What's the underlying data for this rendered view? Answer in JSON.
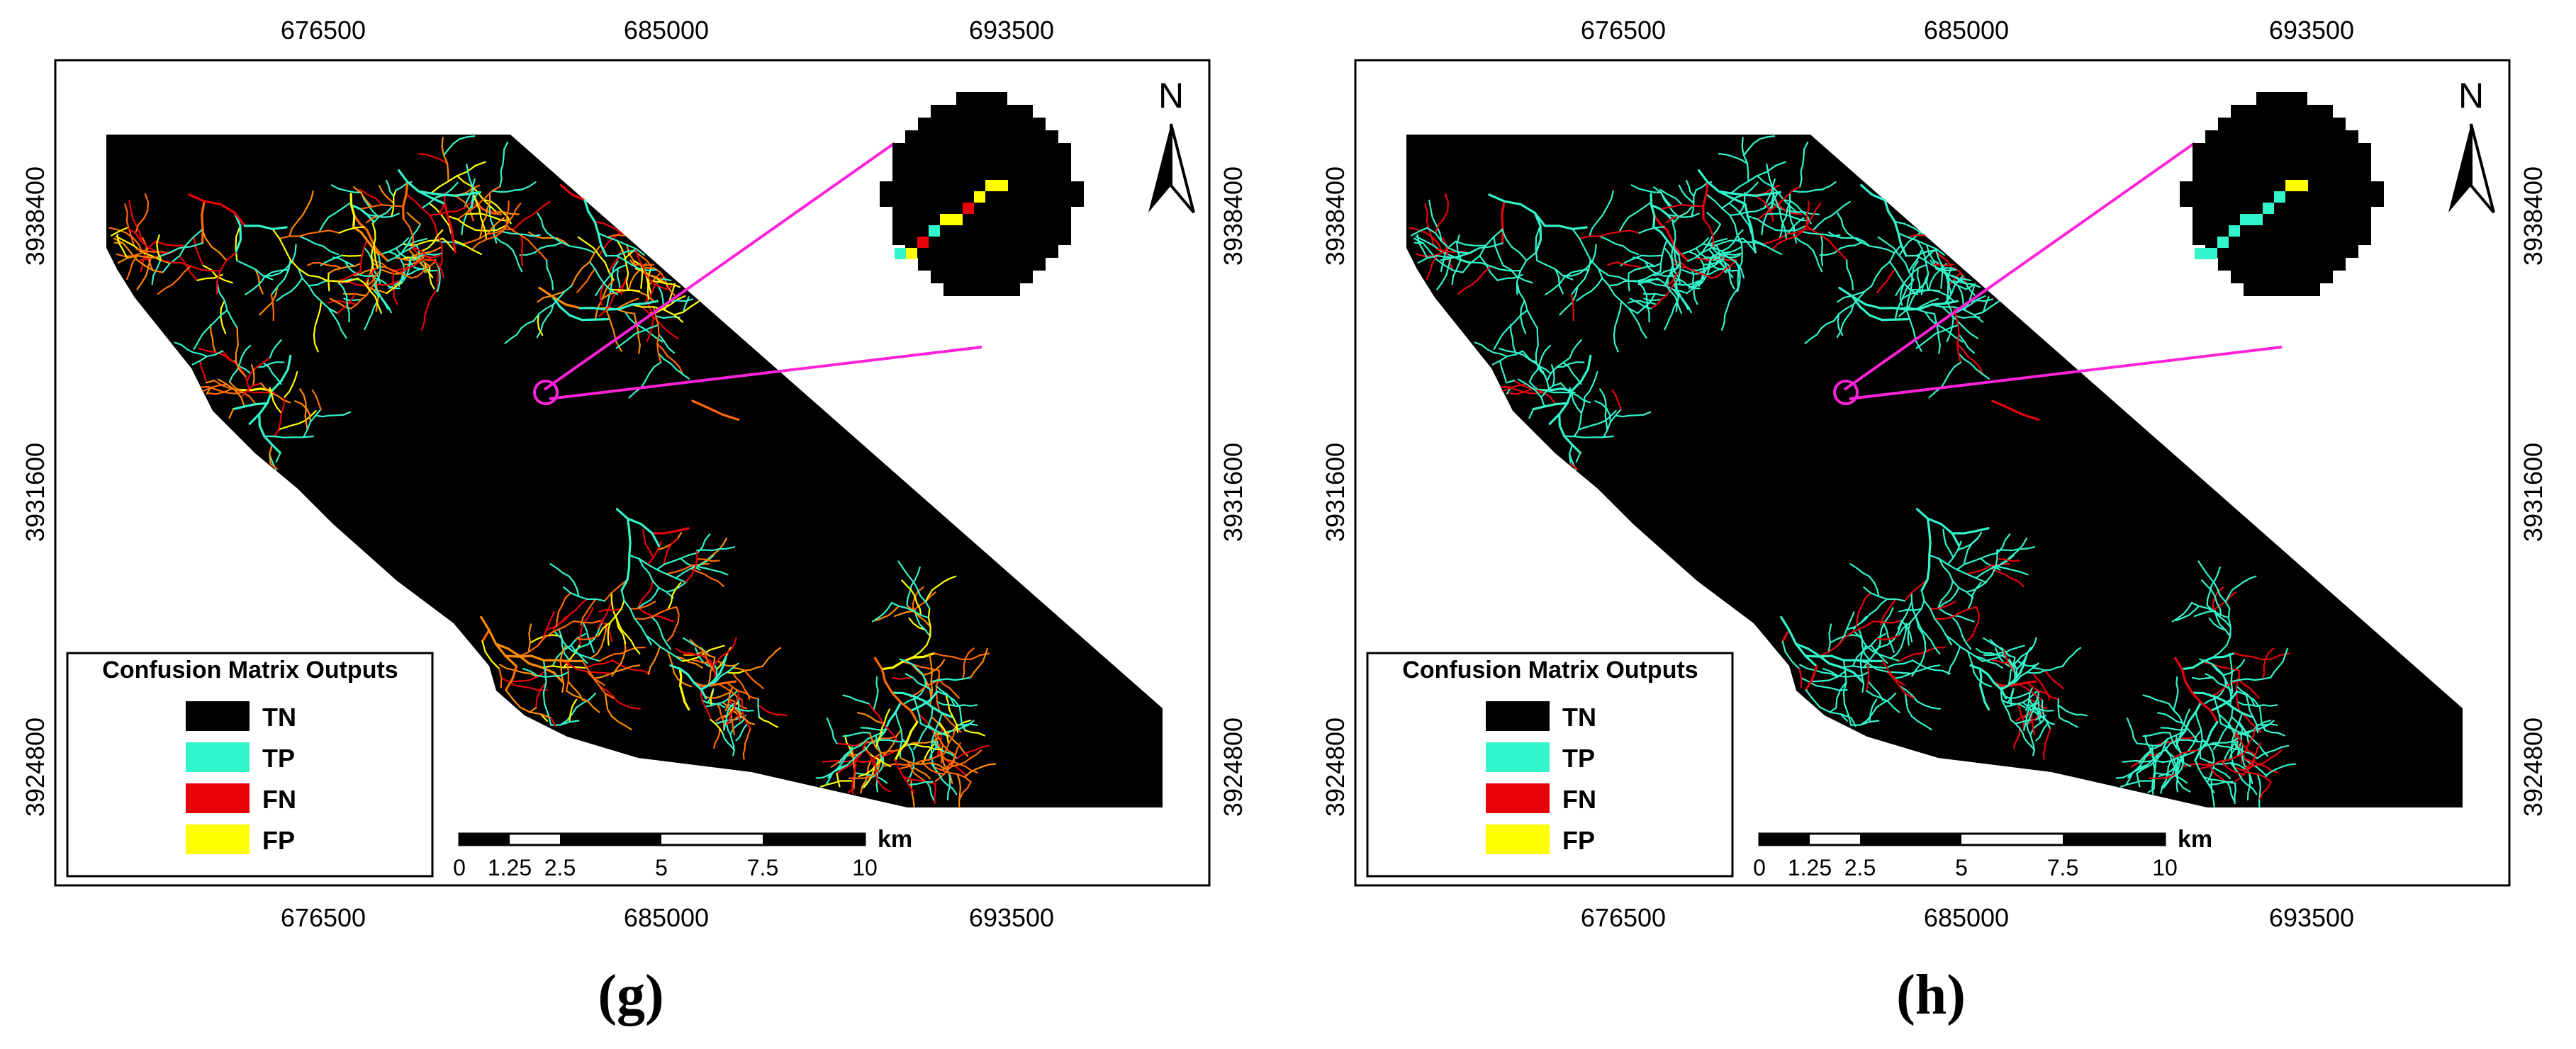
{
  "colors": {
    "TN": "#000000",
    "TP": "#33f5cc",
    "FN": "#e8000b",
    "FP": "#ffff00",
    "callout": "#ff22d8",
    "frame": "#000000"
  },
  "panels": [
    {
      "id": "g",
      "sub_label": "(g)",
      "x_ticks": [
        "676500",
        "685000",
        "693500"
      ],
      "y_ticks": [
        "3938400",
        "3931600",
        "3924800"
      ],
      "north_label": "N",
      "legend": {
        "title": "Confusion Matrix Outputs",
        "items": [
          {
            "label": "TN",
            "color": "#000000"
          },
          {
            "label": "TP",
            "color": "#33f5cc"
          },
          {
            "label": "FN",
            "color": "#e8000b"
          },
          {
            "label": "FP",
            "color": "#ffff00"
          }
        ]
      },
      "scale_bar": {
        "labels": [
          "0",
          "1.25",
          "2.5",
          "5",
          "7.5",
          "10"
        ],
        "unit": "km"
      },
      "stream_palette": [
        "#ff8c00",
        "#e8000b",
        "#ffff00",
        "#33f5cc",
        "#ff6a00",
        "#33f5cc"
      ],
      "zoom_pixels": [
        "TP",
        "FP",
        "FN",
        "TP",
        "FP",
        "FP",
        "FN",
        "FP",
        "FP",
        "FP"
      ]
    },
    {
      "id": "h",
      "sub_label": "(h)",
      "x_ticks": [
        "676500",
        "685000",
        "693500"
      ],
      "y_ticks": [
        "3938400",
        "3931600",
        "3924800"
      ],
      "north_label": "N",
      "legend": {
        "title": "Confusion Matrix Outputs",
        "items": [
          {
            "label": "TN",
            "color": "#000000"
          },
          {
            "label": "TP",
            "color": "#33f5cc"
          },
          {
            "label": "FN",
            "color": "#e8000b"
          },
          {
            "label": "FP",
            "color": "#ffff00"
          }
        ]
      },
      "scale_bar": {
        "labels": [
          "0",
          "1.25",
          "2.5",
          "5",
          "7.5",
          "10"
        ],
        "unit": "km"
      },
      "stream_palette": [
        "#33f5cc",
        "#33f5cc",
        "#33f5cc",
        "#33f5cc",
        "#e8000b",
        "#33f5cc"
      ],
      "zoom_pixels": [
        "TP",
        "TP",
        "TP",
        "TP",
        "TP",
        "TP",
        "TP",
        "TP",
        "FP",
        "FP"
      ]
    }
  ]
}
